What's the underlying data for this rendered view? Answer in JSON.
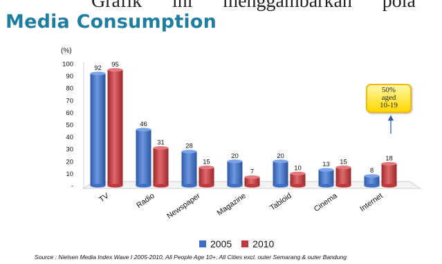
{
  "background_text": [
    "Grafik",
    "ini",
    "menggambarkan",
    "pola"
  ],
  "page_title": "Media Consumption",
  "chart_data": {
    "type": "bar",
    "title": "Media Consumption",
    "ylabel": "(%)",
    "xlabel": "",
    "ylim": [
      0,
      100
    ],
    "y_ticks": [
      "100",
      "90",
      "80",
      "70",
      "60",
      "50",
      "40",
      "30",
      "20",
      "10",
      "-"
    ],
    "categories": [
      "TV",
      "Radio",
      "Newspaper",
      "Magazine",
      "Tabloid",
      "Cinema",
      "Internet"
    ],
    "series": [
      {
        "name": "2005",
        "values": [
          92,
          46,
          28,
          20,
          20,
          13,
          8
        ],
        "color": "#3f6fc4"
      },
      {
        "name": "2010",
        "values": [
          95,
          31,
          15,
          7,
          10,
          15,
          18
        ],
        "color": "#c0383c"
      }
    ],
    "grid": false,
    "legend_position": "bottom",
    "annotation": "50% aged 10-19"
  },
  "callout": {
    "line1": "50%",
    "line2": "aged",
    "line3": "10-19"
  },
  "legend": [
    {
      "label": "2005",
      "color": "#3f6fc4"
    },
    {
      "label": "2010",
      "color": "#c0383c"
    }
  ],
  "source": "Source : Nielsen Media Index Wave I 2005-2010,  All People Age 10+, All Cities excl. outer Semarang & outer Bandung"
}
